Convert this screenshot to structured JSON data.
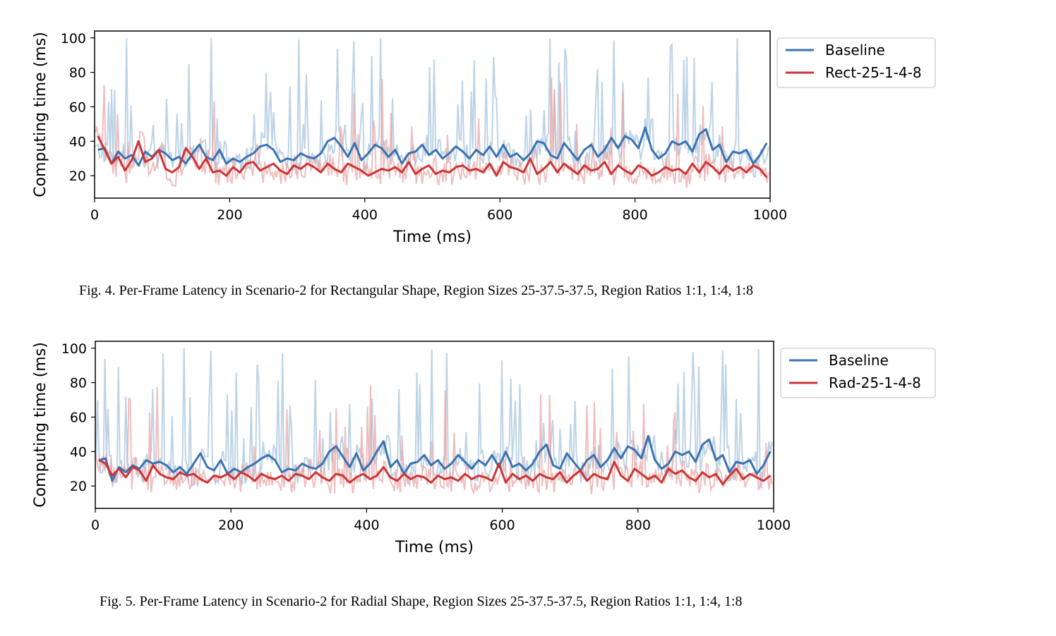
{
  "colors": {
    "baseline": "#3b73b0",
    "baseline_raw": "#a7c4de",
    "variant": "#cc3535",
    "variant_raw": "#e9a3a3"
  },
  "figures": [
    {
      "caption": "Fig. 4.  Per-Frame Latency in Scenario-2 for Rectangular Shape, Region Sizes 25-37.5-37.5, Region Ratios 1:1, 1:4, 1:8"
    },
    {
      "caption": "Fig. 5.  Per-Frame Latency in Scenario-2 for Radial Shape, Region Sizes 25-37.5-37.5, Region Ratios 1:1, 1:4, 1:8"
    }
  ],
  "chart_data": [
    {
      "type": "line",
      "xlabel": "Time (ms)",
      "ylabel": "Computing time (ms)",
      "xlim": [
        0,
        1000
      ],
      "ylim": [
        7,
        104
      ],
      "xticks": [
        0,
        200,
        400,
        600,
        800,
        1000
      ],
      "yticks": [
        20,
        40,
        60,
        80,
        100
      ],
      "grid": false,
      "legend_position": "outside-right-top",
      "series": [
        {
          "name": "Baseline",
          "role": "smoothed",
          "x": [
            5,
            15,
            25,
            35,
            45,
            55,
            65,
            75,
            85,
            95,
            105,
            115,
            125,
            135,
            145,
            155,
            165,
            175,
            185,
            195,
            205,
            215,
            225,
            235,
            245,
            255,
            265,
            275,
            285,
            295,
            305,
            315,
            325,
            335,
            345,
            355,
            365,
            375,
            385,
            395,
            405,
            415,
            425,
            435,
            445,
            455,
            465,
            475,
            485,
            495,
            505,
            515,
            525,
            535,
            545,
            555,
            565,
            575,
            585,
            595,
            605,
            615,
            625,
            635,
            645,
            655,
            665,
            675,
            685,
            695,
            705,
            715,
            725,
            735,
            745,
            755,
            765,
            775,
            785,
            795,
            805,
            815,
            825,
            835,
            845,
            855,
            865,
            875,
            885,
            895,
            905,
            915,
            925,
            935,
            945,
            955,
            965,
            975,
            985,
            995
          ],
          "y": [
            35,
            36,
            27,
            34,
            30,
            32,
            26,
            34,
            31,
            35,
            33,
            29,
            31,
            27,
            33,
            38,
            31,
            29,
            35,
            27,
            30,
            28,
            31,
            33,
            37,
            38,
            35,
            28,
            30,
            29,
            33,
            31,
            30,
            33,
            40,
            42,
            37,
            31,
            39,
            29,
            33,
            38,
            36,
            31,
            35,
            27,
            33,
            34,
            38,
            32,
            35,
            30,
            33,
            37,
            34,
            30,
            35,
            32,
            37,
            31,
            38,
            31,
            33,
            29,
            33,
            40,
            39,
            32,
            30,
            39,
            34,
            29,
            35,
            38,
            31,
            35,
            42,
            36,
            43,
            41,
            36,
            48,
            35,
            30,
            33,
            40,
            38,
            40,
            34,
            44,
            47,
            35,
            38,
            28,
            34,
            33,
            35,
            27,
            32,
            39
          ]
        },
        {
          "name": "Rect-25-1-4-8",
          "role": "smoothed",
          "x": [
            5,
            15,
            25,
            35,
            45,
            55,
            65,
            75,
            85,
            95,
            105,
            115,
            125,
            135,
            145,
            155,
            165,
            175,
            185,
            195,
            205,
            215,
            225,
            235,
            245,
            255,
            265,
            275,
            285,
            295,
            305,
            315,
            325,
            335,
            345,
            355,
            365,
            375,
            385,
            395,
            405,
            415,
            425,
            435,
            445,
            455,
            465,
            475,
            485,
            495,
            505,
            515,
            525,
            535,
            545,
            555,
            565,
            575,
            585,
            595,
            605,
            615,
            625,
            635,
            645,
            655,
            665,
            675,
            685,
            695,
            705,
            715,
            725,
            735,
            745,
            755,
            765,
            775,
            785,
            795,
            805,
            815,
            825,
            835,
            845,
            855,
            865,
            875,
            885,
            895,
            905,
            915,
            925,
            935,
            945,
            955,
            965,
            975,
            985,
            995
          ],
          "y": [
            43,
            35,
            27,
            31,
            23,
            29,
            40,
            28,
            30,
            35,
            24,
            22,
            25,
            36,
            31,
            24,
            30,
            22,
            23,
            20,
            25,
            22,
            27,
            28,
            23,
            25,
            27,
            23,
            21,
            26,
            24,
            27,
            25,
            22,
            27,
            24,
            22,
            27,
            25,
            23,
            20,
            22,
            24,
            23,
            25,
            22,
            28,
            21,
            24,
            26,
            21,
            23,
            22,
            25,
            26,
            23,
            24,
            22,
            27,
            20,
            28,
            25,
            24,
            22,
            30,
            21,
            24,
            28,
            22,
            27,
            24,
            21,
            26,
            23,
            24,
            28,
            21,
            26,
            23,
            21,
            26,
            24,
            20,
            22,
            25,
            23,
            24,
            21,
            27,
            22,
            28,
            25,
            21,
            26,
            23,
            25,
            22,
            26,
            24,
            19
          ]
        }
      ]
    },
    {
      "type": "line",
      "xlabel": "Time (ms)",
      "ylabel": "Computing time (ms)",
      "xlim": [
        0,
        1000
      ],
      "ylim": [
        7,
        104
      ],
      "xticks": [
        0,
        200,
        400,
        600,
        800,
        1000
      ],
      "yticks": [
        20,
        40,
        60,
        80,
        100
      ],
      "grid": false,
      "legend_position": "outside-right-top",
      "series": [
        {
          "name": "Baseline",
          "role": "smoothed",
          "x": [
            5,
            15,
            25,
            35,
            45,
            55,
            65,
            75,
            85,
            95,
            105,
            115,
            125,
            135,
            145,
            155,
            165,
            175,
            185,
            195,
            205,
            215,
            225,
            235,
            245,
            255,
            265,
            275,
            285,
            295,
            305,
            315,
            325,
            335,
            345,
            355,
            365,
            375,
            385,
            395,
            405,
            415,
            425,
            435,
            445,
            455,
            465,
            475,
            485,
            495,
            505,
            515,
            525,
            535,
            545,
            555,
            565,
            575,
            585,
            595,
            605,
            615,
            625,
            635,
            645,
            655,
            665,
            675,
            685,
            695,
            705,
            715,
            725,
            735,
            745,
            755,
            765,
            775,
            785,
            795,
            805,
            815,
            825,
            835,
            845,
            855,
            865,
            875,
            885,
            895,
            905,
            915,
            925,
            935,
            945,
            955,
            965,
            975,
            985,
            995
          ],
          "y": [
            35,
            36,
            23,
            31,
            28,
            32,
            30,
            35,
            33,
            34,
            32,
            28,
            31,
            27,
            33,
            39,
            31,
            29,
            35,
            27,
            30,
            28,
            31,
            33,
            36,
            38,
            35,
            28,
            30,
            29,
            33,
            31,
            30,
            33,
            40,
            43,
            37,
            31,
            39,
            29,
            33,
            40,
            46,
            31,
            35,
            27,
            33,
            34,
            38,
            32,
            35,
            30,
            33,
            38,
            34,
            30,
            35,
            32,
            38,
            31,
            40,
            31,
            33,
            29,
            33,
            40,
            44,
            32,
            30,
            39,
            34,
            29,
            35,
            38,
            31,
            35,
            42,
            36,
            43,
            41,
            36,
            49,
            35,
            30,
            33,
            40,
            38,
            40,
            34,
            44,
            47,
            35,
            38,
            28,
            34,
            33,
            35,
            27,
            32,
            40
          ]
        },
        {
          "name": "Rad-25-1-4-8",
          "role": "smoothed",
          "x": [
            5,
            15,
            25,
            35,
            45,
            55,
            65,
            75,
            85,
            95,
            105,
            115,
            125,
            135,
            145,
            155,
            165,
            175,
            185,
            195,
            205,
            215,
            225,
            235,
            245,
            255,
            265,
            275,
            285,
            295,
            305,
            315,
            325,
            335,
            345,
            355,
            365,
            375,
            385,
            395,
            405,
            415,
            425,
            435,
            445,
            455,
            465,
            475,
            485,
            495,
            505,
            515,
            525,
            535,
            545,
            555,
            565,
            575,
            585,
            595,
            605,
            615,
            625,
            635,
            645,
            655,
            665,
            675,
            685,
            695,
            705,
            715,
            725,
            735,
            745,
            755,
            765,
            775,
            785,
            795,
            805,
            815,
            825,
            835,
            845,
            855,
            865,
            875,
            885,
            895,
            905,
            915,
            925,
            935,
            945,
            955,
            965,
            975,
            985,
            995
          ],
          "y": [
            35,
            33,
            26,
            30,
            25,
            31,
            29,
            23,
            32,
            27,
            25,
            24,
            28,
            26,
            27,
            24,
            22,
            26,
            25,
            27,
            24,
            28,
            26,
            23,
            27,
            25,
            24,
            26,
            23,
            27,
            26,
            24,
            28,
            25,
            23,
            27,
            26,
            22,
            25,
            27,
            24,
            26,
            31,
            25,
            23,
            27,
            24,
            26,
            25,
            22,
            26,
            24,
            25,
            23,
            27,
            24,
            26,
            25,
            23,
            33,
            22,
            27,
            24,
            26,
            23,
            27,
            25,
            24,
            28,
            22,
            26,
            29,
            23,
            27,
            25,
            24,
            34,
            26,
            23,
            30,
            27,
            24,
            26,
            22,
            30,
            27,
            29,
            25,
            23,
            28,
            25,
            27,
            21,
            26,
            30,
            24,
            27,
            25,
            23,
            26
          ]
        }
      ]
    }
  ]
}
